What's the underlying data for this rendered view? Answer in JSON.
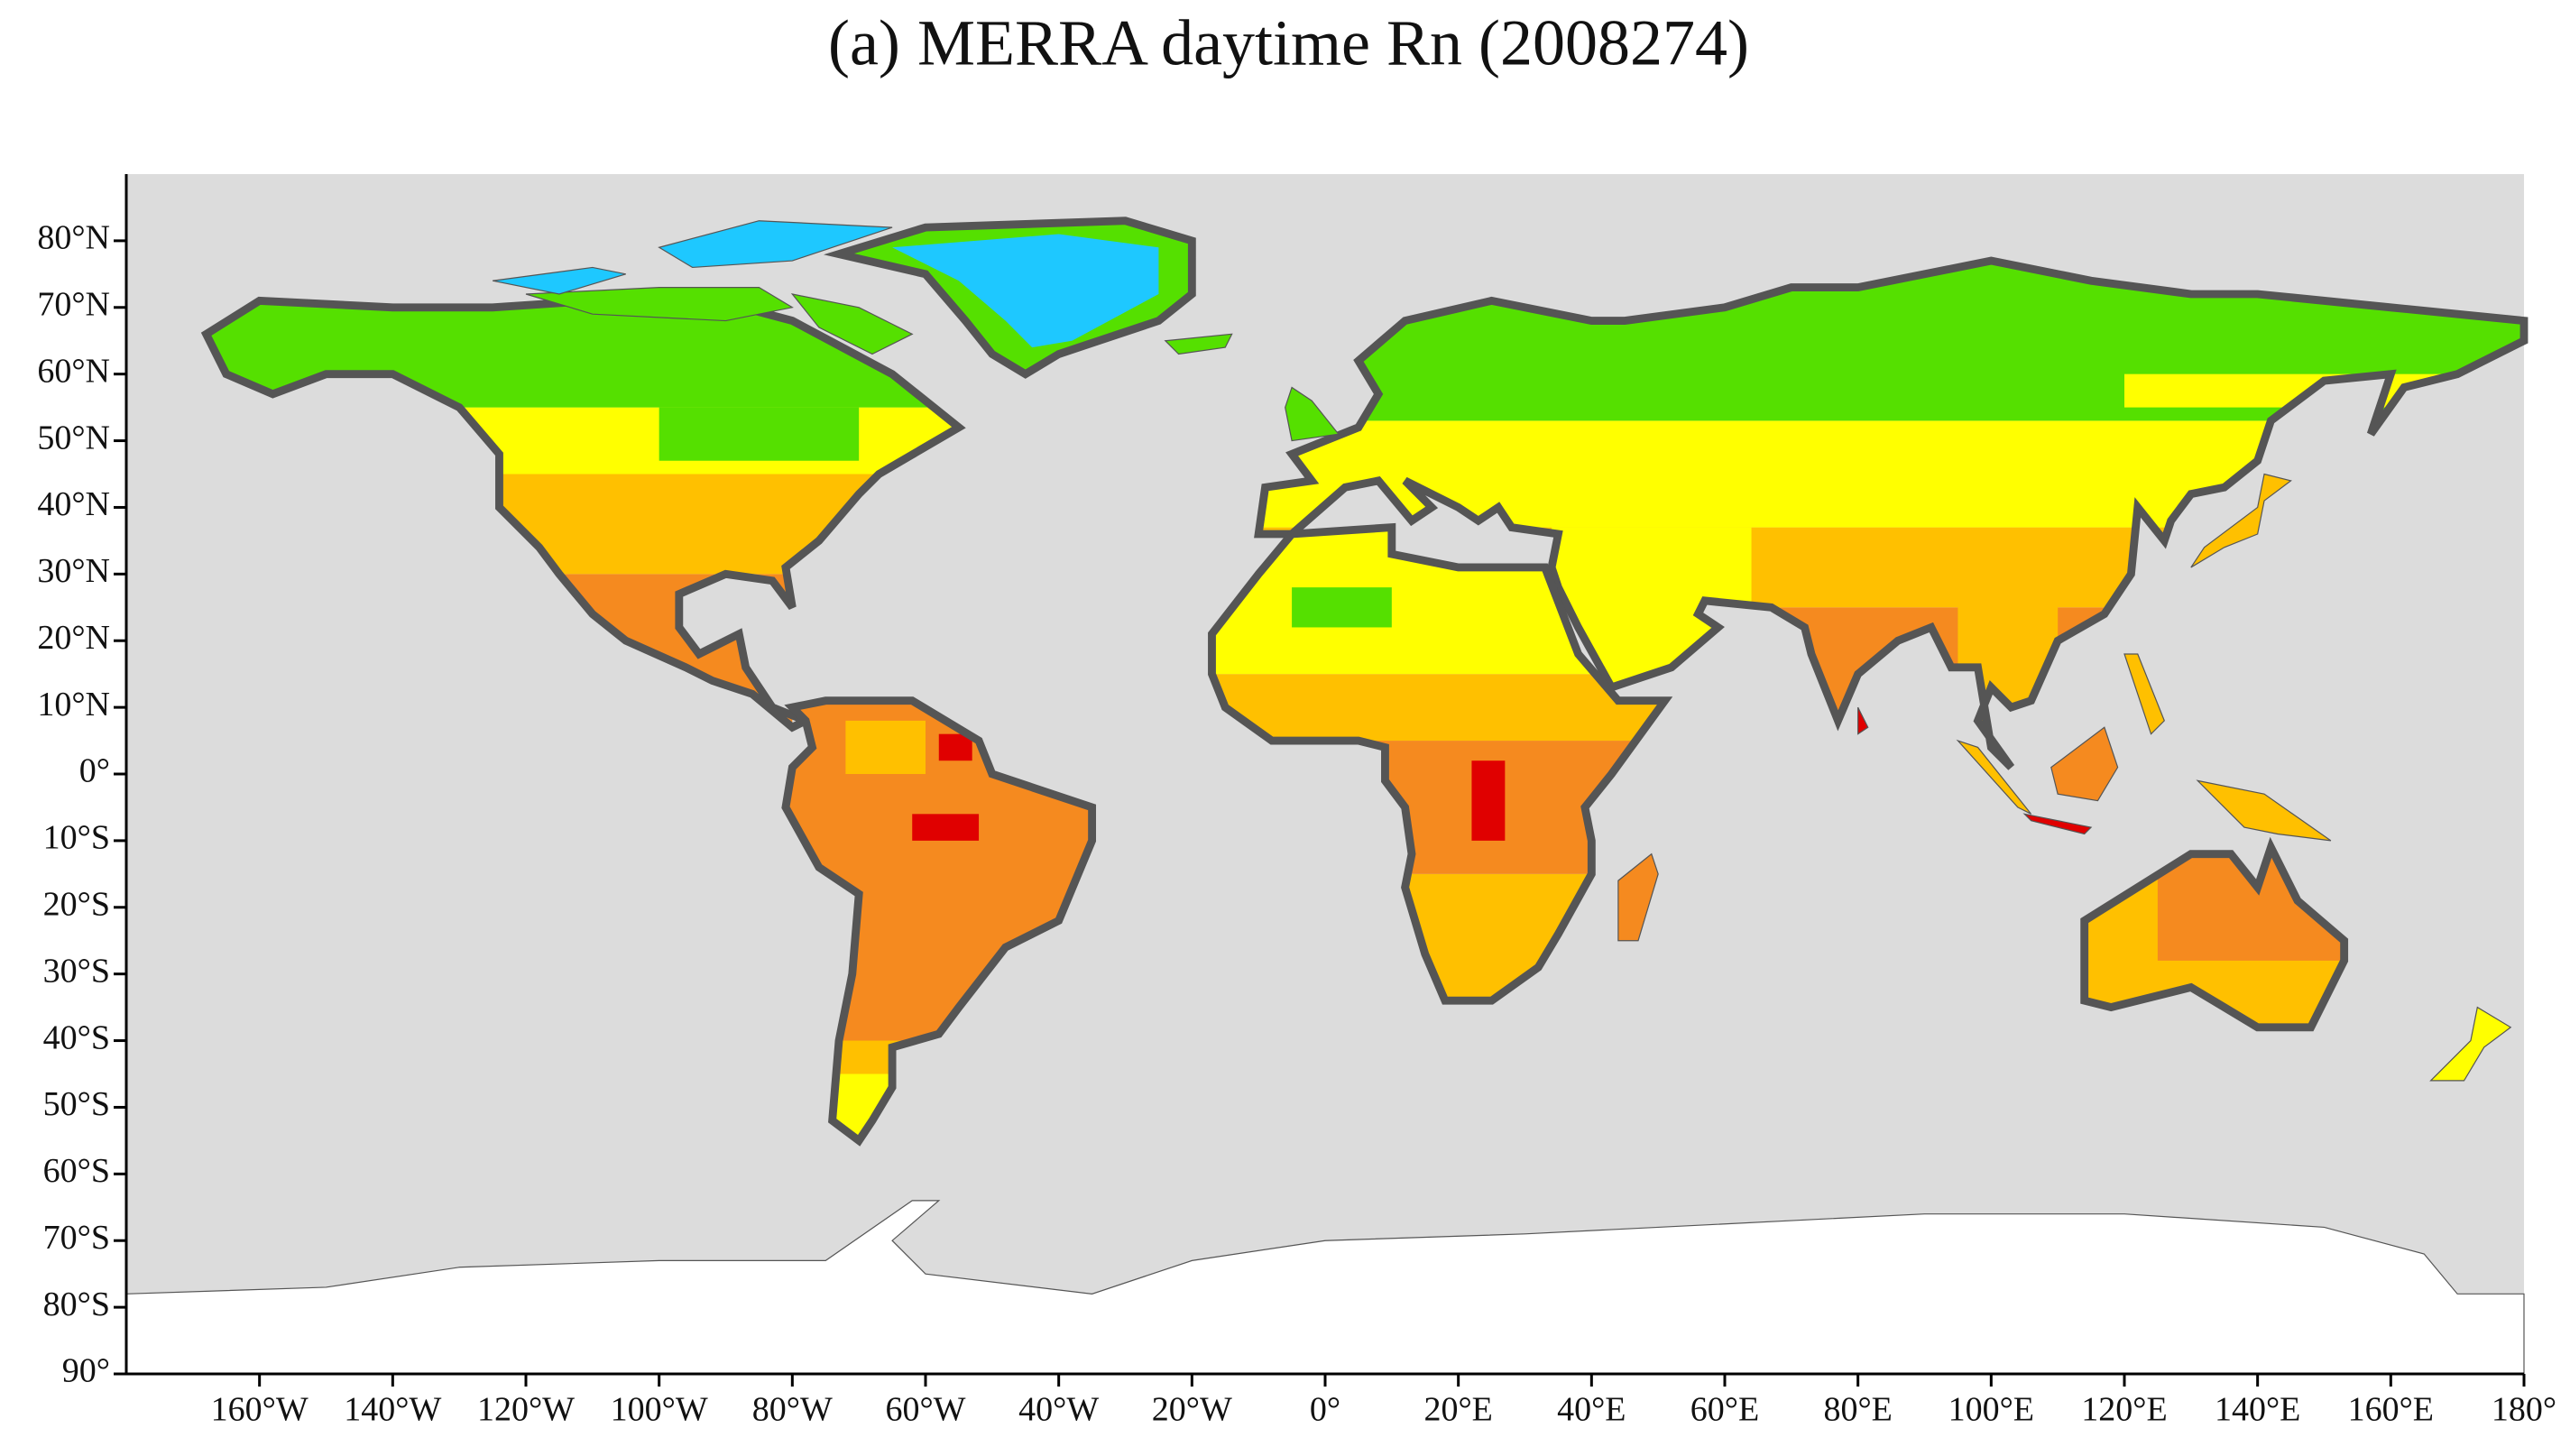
{
  "title": {
    "panel": "(a)",
    "text": "MERRA daytime Rn (2008274)"
  },
  "latitude_labels": [
    "80°N",
    "70°N",
    "60°N",
    "50°N",
    "40°N",
    "30°N",
    "20°N",
    "10°N",
    "0°",
    "10°S",
    "20°S",
    "30°S",
    "40°S",
    "50°S",
    "60°S",
    "70°S",
    "80°S",
    "90°"
  ],
  "longitude_labels": [
    "160°W",
    "140°W",
    "120°W",
    "100°W",
    "80°W",
    "60°W",
    "40°W",
    "20°W",
    "0°",
    "20°E",
    "40°E",
    "60°E",
    "80°E",
    "100°E",
    "120°E",
    "140°E",
    "160°E",
    "180°"
  ]
}
